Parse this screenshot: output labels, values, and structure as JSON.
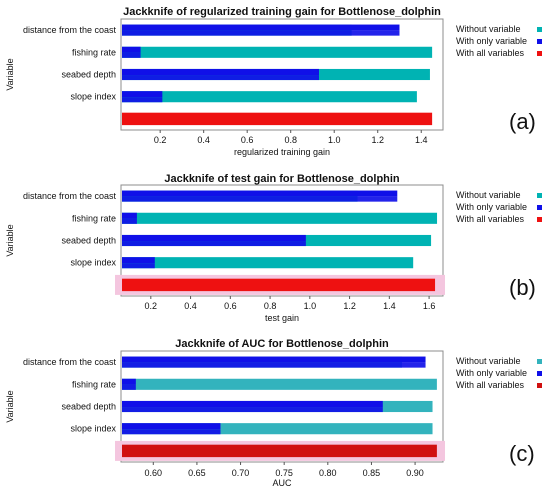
{
  "chart_data": [
    {
      "type": "bar",
      "orientation": "horizontal",
      "title": "Jackknife of regularized training gain for Bottlenose_dolphin",
      "xlabel": "regularized training gain",
      "ylabel": "Variable",
      "panel_label": "(a)",
      "categories": [
        "distance from the coast",
        "fishing rate",
        "seabed depth",
        "slope index"
      ],
      "xlim": [
        0.02,
        1.5
      ],
      "xticks": [
        "0.2",
        "0.4",
        "0.6",
        "0.8",
        "1.0",
        "1.2",
        "1.4"
      ],
      "series": [
        {
          "name": "Without variable",
          "color": "#00b3b3",
          "values": [
            1.08,
            1.45,
            1.44,
            1.38
          ]
        },
        {
          "name": "With only variable",
          "color": "#1010e8",
          "values": [
            1.3,
            0.11,
            0.93,
            0.21
          ]
        }
      ],
      "all_variables": {
        "name": "With all variables",
        "color": "#ee1111",
        "value": 1.45
      }
    },
    {
      "type": "bar",
      "orientation": "horizontal",
      "title": "Jackknife of test gain for Bottlenose_dolphin",
      "xlabel": "test gain",
      "ylabel": "Variable",
      "panel_label": "(b)",
      "categories": [
        "distance from the coast",
        "fishing rate",
        "seabed depth",
        "slope index"
      ],
      "xlim": [
        0.05,
        1.67
      ],
      "xticks": [
        "0.2",
        "0.4",
        "0.6",
        "0.8",
        "1.0",
        "1.2",
        "1.4",
        "1.6"
      ],
      "series": [
        {
          "name": "Without variable",
          "color": "#00b3b3",
          "values": [
            1.24,
            1.64,
            1.61,
            1.52
          ]
        },
        {
          "name": "With only variable",
          "color": "#1010e8",
          "values": [
            1.44,
            0.13,
            0.98,
            0.22
          ]
        }
      ],
      "all_variables": {
        "name": "With all variables",
        "color": "#ee1111",
        "value": 1.63
      }
    },
    {
      "type": "bar",
      "orientation": "horizontal",
      "title": "Jackknife of AUC for Bottlenose_dolphin",
      "xlabel": "AUC",
      "ylabel": "Variable",
      "panel_label": "(c)",
      "categories": [
        "distance from the coast",
        "fishing rate",
        "seabed depth",
        "slope index"
      ],
      "xlim": [
        0.563,
        0.932
      ],
      "xticks": [
        "0.60",
        "0.65",
        "0.70",
        "0.75",
        "0.80",
        "0.85",
        "0.90"
      ],
      "series": [
        {
          "name": "Without variable",
          "color": "#33b3bd",
          "values": [
            0.885,
            0.925,
            0.92,
            0.92
          ]
        },
        {
          "name": "With only variable",
          "color": "#1010e8",
          "values": [
            0.912,
            0.58,
            0.863,
            0.677
          ]
        }
      ],
      "all_variables": {
        "name": "With all variables",
        "color": "#d01010",
        "value": 0.925
      }
    }
  ]
}
